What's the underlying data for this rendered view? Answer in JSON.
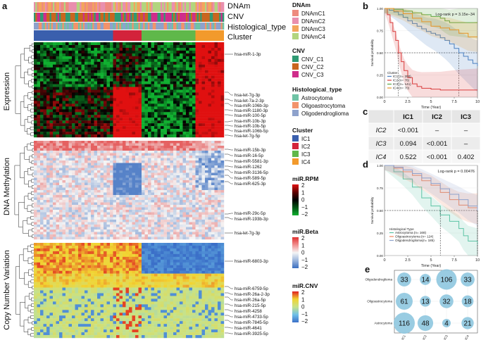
{
  "panel_labels": {
    "a": "a",
    "b": "b",
    "c": "c",
    "d": "d",
    "e": "e"
  },
  "colors": {
    "DNAmC1": "#ee8a7e",
    "DNAmC2": "#e98fae",
    "DNAmC3": "#f3a55c",
    "DNAmC4": "#b2d57e",
    "CNV_C1": "#2f9a73",
    "CNV_C2": "#c9661f",
    "CNV_C3": "#cf2d8b",
    "Astrocytoma": "#6fc3a5",
    "Oligoastrocytoma": "#f2936b",
    "Oligodendroglioma": "#8ea2cc",
    "IC1": "#3a5fad",
    "IC2": "#d3233b",
    "IC3": "#5fb84a",
    "IC4": "#f29a2c",
    "km_IC1": "#4a7fc0",
    "km_IC2": "#d93b3b",
    "km_IC3": "#5ba844",
    "km_IC4": "#e69427",
    "km_Astro": "#5cc3a5",
    "km_Oligoastro": "#f0875e",
    "km_Oligodendro": "#8ea2cc",
    "bubble": "#8ec6df"
  },
  "heatmap_a": {
    "annotation_tracks": [
      "DNAm",
      "CNV",
      "Histological_type",
      "Cluster"
    ],
    "row_titles": [
      "Expression",
      "DNA Methylation",
      "Copy Number Variation"
    ],
    "cluster_fractions": [
      {
        "name": "IC1",
        "frac": 0.42
      },
      {
        "name": "IC2",
        "frac": 0.15
      },
      {
        "name": "IC3",
        "frac": 0.28
      },
      {
        "name": "IC4",
        "frac": 0.15
      }
    ],
    "expression_genes": [
      "hsa-miR-1-3p",
      "hsa-let-7g-3p",
      "hsa-let-7a-2-3p",
      "hsa-miR-106b-3p",
      "hsa-miR-1180-3p",
      "hsa-miR-100-5p",
      "hsa-miR-10b-3p",
      "hsa-miR-10b-5p",
      "hsa-miR-106b-5p",
      "hsa-let-7g-5p"
    ],
    "methylation_genes": [
      "hsa-miR-15b-3p",
      "hsa-miR-16-5p",
      "hsa-miR-5581-3p",
      "hsa-miR-1262",
      "hsa-miR-3136-5p",
      "hsa-miR-589-5p",
      "hsa-miR-625-3p",
      "hsa-miR-29c-5p",
      "hsa-miR-193b-3p",
      "hsa-let-7g-3p"
    ],
    "cnv_genes": [
      "hsa-miR-6803-3p",
      "hsa-miR-6759-5p",
      "hsa-miR-26a-2-3p",
      "hsa-miR-26a-5p",
      "hsa-miR-215-5p",
      "hsa-miR-4258",
      "hsa-miR-4733-5p",
      "hsa-miR-7845-5p",
      "hsa-miR-4641",
      "hsa-miR-3925-5p"
    ]
  },
  "legends": {
    "DNAm": {
      "title": "DNAm",
      "items": [
        "DNAmC1",
        "DNAmC2",
        "DNAmC3",
        "DNAmC4"
      ]
    },
    "CNV": {
      "title": "CNV",
      "items": [
        "CNV_C1",
        "CNV_C2",
        "CNV_C3"
      ]
    },
    "Histological_type": {
      "title": "Histological_type",
      "items": [
        "Astrocytoma",
        "Oligoastrocytoma",
        "Oligodendroglioma"
      ]
    },
    "Cluster": {
      "title": "Cluster",
      "items": [
        "IC1",
        "IC2",
        "IC3",
        "IC4"
      ]
    },
    "miR_RPM": {
      "title": "miR.RPM",
      "ticks": [
        "2",
        "1",
        "0",
        "−1",
        "−2"
      ]
    },
    "miR_Beta": {
      "title": "miR.Beta",
      "ticks": [
        "2",
        "1",
        "0",
        "−1",
        "−2"
      ]
    },
    "miR_CNV": {
      "title": "miR.CNV",
      "ticks": [
        "2",
        "1",
        "0",
        "−1",
        "−2"
      ]
    }
  },
  "chart_data": [
    {
      "id": "b",
      "type": "line",
      "title": "",
      "xlabel": "Time (Year)",
      "ylabel": "Survival probability",
      "xlim": [
        0,
        10
      ],
      "ylim": [
        0,
        1
      ],
      "xticks": [
        "0",
        "2.5",
        "5",
        "7.5",
        "10"
      ],
      "yticks": [
        "0.00",
        "0.25",
        "0.50",
        "0.75",
        "1.00"
      ],
      "annotation": "Log-rank p = 3.15e−34",
      "legend_title": "Cluster",
      "series": [
        {
          "name": "IC1 (n= 200)",
          "key": "IC1",
          "x": [
            0,
            0.5,
            1,
            1.5,
            2,
            2.5,
            3,
            3.5,
            4,
            4.5,
            5,
            5.5,
            6,
            6.5,
            7,
            7.5,
            8,
            8.5,
            9,
            9.5,
            10
          ],
          "y": [
            1,
            0.98,
            0.96,
            0.93,
            0.9,
            0.86,
            0.83,
            0.8,
            0.77,
            0.74,
            0.72,
            0.7,
            0.67,
            0.64,
            0.6,
            0.55,
            0.5,
            0.46,
            0.42,
            0.38,
            0.35
          ]
        },
        {
          "name": "IC2 (n= 76)",
          "key": "IC2",
          "x": [
            0,
            0.3,
            0.6,
            0.9,
            1.2,
            1.5,
            1.8,
            2.1,
            2.5,
            3,
            3.5,
            4,
            5,
            6,
            7,
            8,
            10
          ],
          "y": [
            1,
            0.93,
            0.84,
            0.74,
            0.64,
            0.5,
            0.4,
            0.3,
            0.22,
            0.15,
            0.12,
            0.1,
            0.09,
            0.08,
            0.08,
            0.08,
            0.08
          ]
        },
        {
          "name": "IC3 (n= 141)",
          "key": "IC3",
          "x": [
            0,
            1,
            2,
            3,
            4,
            5,
            6,
            6.5,
            7,
            8,
            9,
            10
          ],
          "y": [
            1,
            0.99,
            0.97,
            0.95,
            0.93,
            0.91,
            0.89,
            0.86,
            0.84,
            0.84,
            0.84,
            0.84
          ]
        },
        {
          "name": "IC4 (n= 70)",
          "key": "IC4",
          "x": [
            0,
            1,
            2,
            3,
            4,
            5,
            6,
            7,
            8,
            9,
            10
          ],
          "y": [
            1,
            0.97,
            0.94,
            0.89,
            0.85,
            0.8,
            0.78,
            0.76,
            0.72,
            0.68,
            0.68
          ]
        }
      ]
    },
    {
      "id": "c",
      "type": "table",
      "columns": [
        "IC1",
        "IC2",
        "IC3"
      ],
      "rows": [
        {
          "label": "IC2",
          "cells": [
            "<0.001",
            "–",
            "–"
          ]
        },
        {
          "label": "IC3",
          "cells": [
            "0.094",
            "<0.001",
            "–"
          ]
        },
        {
          "label": "IC4",
          "cells": [
            "0.522",
            "<0.001",
            "0.402"
          ]
        }
      ]
    },
    {
      "id": "d",
      "type": "line",
      "xlabel": "Time (Year)",
      "ylabel": "Survival probability",
      "xlim": [
        0,
        10
      ],
      "ylim": [
        0,
        1
      ],
      "xticks": [
        "0",
        "2.5",
        "5",
        "7.5",
        "10"
      ],
      "yticks": [
        "0.00",
        "0.25",
        "0.50",
        "0.75",
        "1.00"
      ],
      "annotation": "Log-rank p = 0.00476",
      "legend_title": "Histological Type",
      "series": [
        {
          "name": "Astrocytoma (n= 168)",
          "key": "Astro",
          "x": [
            0,
            1,
            2,
            3,
            4,
            5,
            6,
            7,
            8,
            8.5,
            9,
            10
          ],
          "y": [
            1,
            0.93,
            0.85,
            0.76,
            0.64,
            0.55,
            0.45,
            0.38,
            0.3,
            0.22,
            0.16,
            0.12
          ]
        },
        {
          "name": "Oligoastrocytoma (n= 124)",
          "key": "Oligoastro",
          "x": [
            0,
            1,
            2,
            3,
            4,
            5,
            6,
            7,
            8,
            9,
            10
          ],
          "y": [
            1,
            0.97,
            0.93,
            0.89,
            0.83,
            0.78,
            0.7,
            0.62,
            0.56,
            0.53,
            0.52
          ]
        },
        {
          "name": "Oligodendroglioma(n= 185)",
          "key": "Oligodendro",
          "x": [
            0,
            1,
            2,
            3,
            4,
            5,
            6,
            7,
            8,
            9,
            10
          ],
          "y": [
            1,
            0.98,
            0.95,
            0.91,
            0.86,
            0.8,
            0.74,
            0.68,
            0.62,
            0.55,
            0.5
          ]
        }
      ]
    },
    {
      "id": "e",
      "type": "scatter",
      "subtype": "bubble",
      "rows": [
        "Oligodendroglioma",
        "Oligoastrocytoma",
        "Astrocytoma"
      ],
      "columns": [
        "IC1",
        "IC2",
        "IC3",
        "IC4"
      ],
      "values": [
        [
          33,
          14,
          106,
          33
        ],
        [
          61,
          13,
          32,
          18
        ],
        [
          116,
          48,
          4,
          21
        ]
      ]
    }
  ]
}
